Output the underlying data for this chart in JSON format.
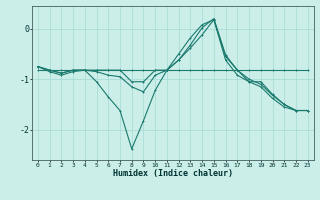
{
  "xlabel": "Humidex (Indice chaleur)",
  "ylabel": "",
  "bg_color": "#cceee8",
  "grid_color": "#aaddd8",
  "line_color": "#1a7a6e",
  "xlim": [
    -0.5,
    23.5
  ],
  "ylim": [
    -2.6,
    0.45
  ],
  "yticks": [
    0,
    -1,
    -2
  ],
  "xticks": [
    0,
    1,
    2,
    3,
    4,
    5,
    6,
    7,
    8,
    9,
    10,
    11,
    12,
    13,
    14,
    15,
    16,
    17,
    18,
    19,
    20,
    21,
    22,
    23
  ],
  "series": [
    {
      "x": [
        0,
        1,
        2,
        3,
        4,
        5,
        6,
        7,
        8,
        9,
        10,
        11,
        12,
        13,
        14,
        15,
        16,
        17,
        18,
        19,
        20,
        21,
        22,
        23
      ],
      "y": [
        -0.75,
        -0.82,
        -0.88,
        -0.82,
        -0.82,
        -1.05,
        -1.35,
        -1.62,
        -2.38,
        -1.82,
        -1.22,
        -0.82,
        -0.5,
        -0.18,
        0.08,
        0.18,
        -0.62,
        -0.92,
        -1.05,
        -1.15,
        -1.38,
        -1.55,
        -1.62,
        -1.62
      ]
    },
    {
      "x": [
        0,
        1,
        2,
        3,
        4,
        5,
        6,
        7,
        8,
        9,
        10,
        11,
        12,
        13,
        14,
        15,
        16,
        17,
        18,
        19,
        20,
        21,
        22,
        23
      ],
      "y": [
        -0.82,
        -0.82,
        -0.82,
        -0.82,
        -0.82,
        -0.82,
        -0.82,
        -0.82,
        -0.82,
        -0.82,
        -0.82,
        -0.82,
        -0.82,
        -0.82,
        -0.82,
        -0.82,
        -0.82,
        -0.82,
        -0.82,
        -0.82,
        -0.82,
        -0.82,
        -0.82,
        -0.82
      ]
    },
    {
      "x": [
        0,
        1,
        2,
        3,
        4,
        5,
        6,
        7,
        8,
        9,
        10,
        11,
        12,
        13,
        14,
        15,
        16,
        17,
        18,
        19,
        20,
        21,
        22,
        23
      ],
      "y": [
        -0.75,
        -0.82,
        -0.88,
        -0.82,
        -0.82,
        -0.82,
        -0.82,
        -0.82,
        -1.05,
        -1.05,
        -0.82,
        -0.82,
        -0.62,
        -0.38,
        -0.12,
        0.18,
        -0.55,
        -0.82,
        -1.05,
        -1.05,
        -1.3,
        -1.5,
        -1.62,
        -1.62
      ]
    },
    {
      "x": [
        0,
        1,
        2,
        3,
        4,
        5,
        6,
        7,
        8,
        9,
        10,
        11,
        12,
        13,
        14,
        15,
        16,
        17,
        18,
        19,
        20,
        21,
        22,
        23
      ],
      "y": [
        -0.75,
        -0.85,
        -0.92,
        -0.85,
        -0.82,
        -0.85,
        -0.92,
        -0.95,
        -1.15,
        -1.25,
        -0.92,
        -0.82,
        -0.62,
        -0.32,
        0.02,
        0.2,
        -0.52,
        -0.82,
        -1.0,
        -1.1,
        -1.32,
        -1.5,
        -1.62,
        -1.62
      ]
    }
  ]
}
